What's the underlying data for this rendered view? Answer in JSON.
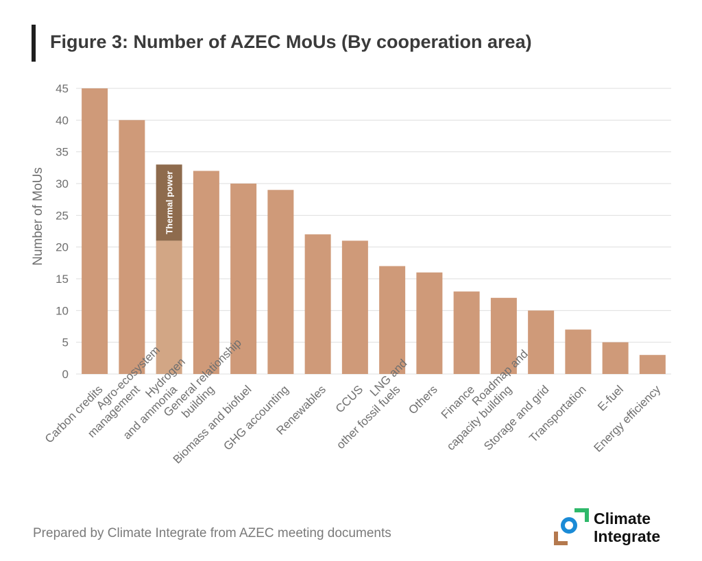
{
  "title": "Figure 3: Number of AZEC MoUs (By cooperation area)",
  "source": "Prepared by Climate Integrate from AZEC meeting documents",
  "logo": {
    "line1": "Climate",
    "line2": "Integrate"
  },
  "colors": {
    "bar": "#cf9a79",
    "bar_light": "#d2a685",
    "bar_dark": "#8e6b4d",
    "grid": "#dedede",
    "axis_text": "#6f6f6f",
    "logo_green": "#2fb86a",
    "logo_blue": "#1b8bd6",
    "logo_brown": "#b4794e"
  },
  "chart_data": {
    "type": "bar",
    "title": "Figure 3: Number of AZEC MoUs (By cooperation area)",
    "xlabel": "",
    "ylabel": "Number of MoUs",
    "ylim": [
      0,
      45
    ],
    "yticks": [
      0,
      5,
      10,
      15,
      20,
      25,
      30,
      35,
      40,
      45
    ],
    "grid": true,
    "categories": [
      [
        "Carbon credits"
      ],
      [
        "Agro-ecosystem",
        "management"
      ],
      [
        "Hydrogen",
        "and ammonia"
      ],
      [
        "General relationship",
        "building"
      ],
      [
        "Biomass and biofuel"
      ],
      [
        "GHG accounting"
      ],
      [
        "Renewables"
      ],
      [
        "CCUS"
      ],
      [
        "LNG and",
        "other fossil fuels"
      ],
      [
        "Others"
      ],
      [
        "Finance"
      ],
      [
        "Roadmap and",
        "capacity building"
      ],
      [
        "Storage and  grid"
      ],
      [
        "Transportation"
      ],
      [
        "E-fuel"
      ],
      [
        "Energy efficiency"
      ]
    ],
    "values": [
      45,
      40,
      33,
      32,
      30,
      29,
      22,
      21,
      17,
      16,
      13,
      12,
      10,
      7,
      5,
      3
    ],
    "stacked_breakdown": {
      "category_index": 2,
      "base_value": 21,
      "segment_value": 12,
      "segment_label": "Thermal power"
    }
  }
}
